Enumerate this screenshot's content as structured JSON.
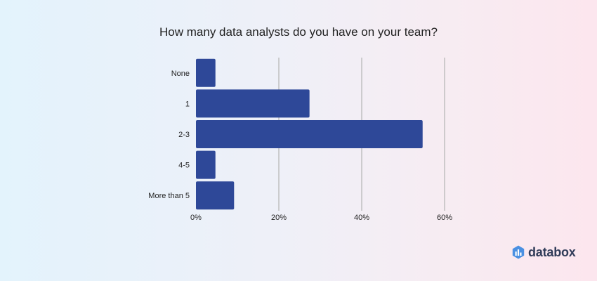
{
  "chart_data": {
    "type": "bar",
    "orientation": "horizontal",
    "title": "How many data analysts do you have on your team?",
    "categories": [
      "None",
      "1",
      "2-3",
      "4-5",
      "More than 5"
    ],
    "values": [
      4.7,
      27.4,
      54.7,
      4.7,
      9.2
    ],
    "value_unit": "%",
    "xlim": [
      0,
      60
    ],
    "xticks": [
      "0%",
      "20%",
      "40%",
      "60%"
    ],
    "grid": "vertical",
    "bar_color": "#2e4898",
    "gridline_color": "#b8b8b8"
  },
  "brand": {
    "name": "databox",
    "icon": "databox-logo-icon",
    "color": "#2f3b58",
    "icon_color": "#4a90e2"
  }
}
